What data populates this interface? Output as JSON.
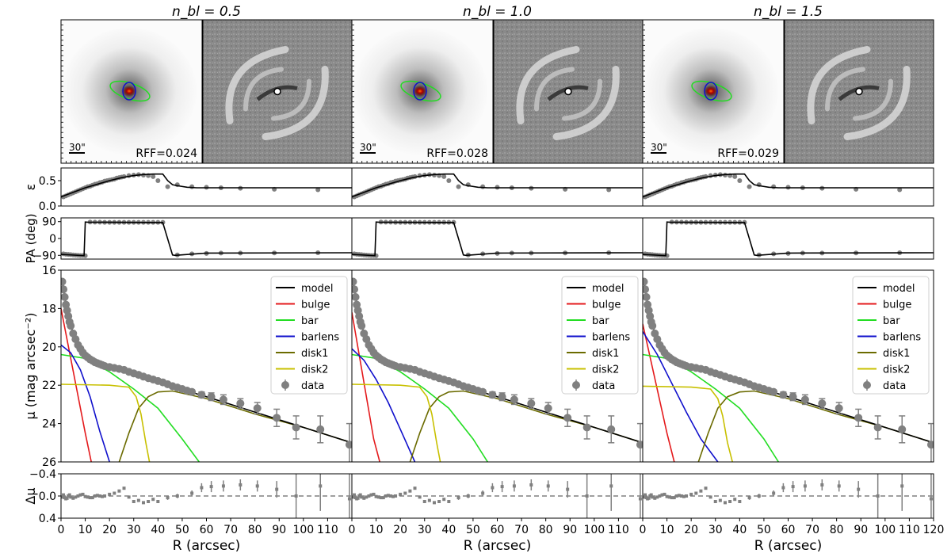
{
  "figure": {
    "column_titles": [
      "n_bl = 0.5",
      "n_bl = 1.0",
      "n_bl = 1.5"
    ],
    "scale_bar_label": "30\"",
    "rff_labels": [
      "RFF=0.024",
      "RFF=0.028",
      "RFF=0.029"
    ],
    "colors": {
      "model": "#000000",
      "bulge": "#e41a1c",
      "bar": "#22dd22",
      "barlens": "#1010cc",
      "disk1": "#6b6b00",
      "disk2": "#c8c000",
      "data": "#808080"
    }
  },
  "chart_data": [
    {
      "type": "scatter",
      "panel": "ellipticity",
      "ylabel": "ε",
      "ylim": [
        0,
        0.75
      ],
      "yticks": [
        "0.0",
        "0.5"
      ],
      "xlim": [
        0,
        120
      ],
      "data_x": [
        1,
        2,
        3,
        4,
        5,
        6,
        7,
        8,
        9,
        10,
        11,
        12,
        13,
        14,
        15,
        16,
        17,
        18,
        19,
        20,
        21,
        22,
        23,
        24,
        25,
        26,
        28,
        30,
        32,
        34,
        36,
        38,
        40,
        44,
        48,
        54,
        60,
        66,
        74,
        88,
        106
      ],
      "data_y": [
        0.18,
        0.2,
        0.22,
        0.24,
        0.26,
        0.28,
        0.3,
        0.32,
        0.34,
        0.36,
        0.38,
        0.39,
        0.41,
        0.43,
        0.44,
        0.46,
        0.47,
        0.49,
        0.5,
        0.51,
        0.52,
        0.53,
        0.55,
        0.56,
        0.57,
        0.58,
        0.6,
        0.61,
        0.62,
        0.61,
        0.6,
        0.58,
        0.5,
        0.38,
        0.42,
        0.38,
        0.37,
        0.36,
        0.35,
        0.33,
        0.32
      ],
      "model_x": [
        0,
        10,
        20,
        25,
        30,
        34,
        38,
        42,
        44,
        46,
        48,
        52,
        56,
        60,
        70,
        90,
        120
      ],
      "model_y": [
        0.18,
        0.36,
        0.5,
        0.56,
        0.6,
        0.62,
        0.63,
        0.63,
        0.5,
        0.42,
        0.4,
        0.37,
        0.36,
        0.36,
        0.36,
        0.36,
        0.36
      ]
    },
    {
      "type": "scatter",
      "panel": "position-angle",
      "ylabel": "PA (deg)",
      "ylim": [
        -110,
        110
      ],
      "yticks": [
        "90",
        "0",
        "−90"
      ],
      "xlim": [
        0,
        120
      ],
      "data_x": [
        1,
        2,
        3,
        4,
        5,
        6,
        7,
        8,
        9,
        10,
        12,
        14,
        16,
        18,
        20,
        22,
        24,
        26,
        28,
        30,
        32,
        34,
        36,
        38,
        40,
        42,
        48,
        54,
        60,
        66,
        74,
        88,
        106
      ],
      "data_y": [
        -82,
        -84,
        -85,
        -86,
        -88,
        -89,
        -90,
        -91,
        -91,
        -92,
        88,
        87,
        87,
        86,
        86,
        86,
        86,
        86,
        86,
        86,
        86,
        86,
        86,
        86,
        86,
        86,
        -88,
        -82,
        -80,
        -78,
        -78,
        -77,
        -76
      ],
      "model_x": [
        0,
        9.5,
        10,
        11,
        42,
        46,
        47,
        60,
        120
      ],
      "model_y": [
        -85,
        -92,
        88,
        87,
        85,
        -88,
        -90,
        -78,
        -76
      ]
    },
    {
      "type": "line",
      "panel": "surface-brightness",
      "ylabel": "μ (mag arcsec⁻²)",
      "ylim": [
        26,
        16
      ],
      "yticks": [
        "16",
        "18",
        "20",
        "22",
        "24",
        "26"
      ],
      "xlim": [
        0,
        120
      ],
      "legend": [
        "model",
        "bulge",
        "bar",
        "barlens",
        "disk1",
        "disk2",
        "data"
      ],
      "data_x": [
        0.5,
        1,
        1.5,
        2,
        2.5,
        3,
        3.5,
        4,
        5,
        6,
        7,
        8,
        9,
        10,
        11,
        12,
        13,
        14,
        15,
        16,
        17,
        18,
        20,
        22,
        24,
        26,
        28,
        30,
        32,
        34,
        36,
        38,
        40,
        42,
        44,
        46,
        48,
        50,
        52,
        54,
        58,
        62,
        67,
        74,
        81,
        89,
        97,
        107,
        119
      ],
      "data_y": [
        16.6,
        17.0,
        17.4,
        17.8,
        18.1,
        18.4,
        18.7,
        18.9,
        19.3,
        19.6,
        19.9,
        20.1,
        20.3,
        20.45,
        20.55,
        20.65,
        20.72,
        20.8,
        20.85,
        20.9,
        20.95,
        21.0,
        21.05,
        21.1,
        21.15,
        21.2,
        21.3,
        21.38,
        21.46,
        21.55,
        21.63,
        21.7,
        21.78,
        21.85,
        21.95,
        22.05,
        22.12,
        22.2,
        22.28,
        22.35,
        22.5,
        22.6,
        22.75,
        22.95,
        23.2,
        23.7,
        24.2,
        24.3,
        25.1
      ],
      "err": [
        0,
        0,
        0,
        0,
        0,
        0,
        0,
        0,
        0,
        0,
        0,
        0,
        0,
        0,
        0,
        0,
        0,
        0,
        0,
        0,
        0,
        0,
        0,
        0,
        0,
        0,
        0,
        0,
        0,
        0,
        0,
        0,
        0,
        0.05,
        0.05,
        0.05,
        0.08,
        0.08,
        0.1,
        0.1,
        0.15,
        0.2,
        0.25,
        0.25,
        0.3,
        0.45,
        0.6,
        0.7,
        1.1
      ],
      "model_x": [
        0.5,
        2,
        4,
        6,
        8,
        10,
        14,
        18,
        22,
        26,
        30,
        34,
        40,
        46,
        52,
        60,
        70,
        80,
        90,
        100,
        110,
        120
      ],
      "model_y": [
        16.5,
        17.7,
        18.9,
        19.6,
        20.1,
        20.45,
        20.85,
        21.0,
        21.1,
        21.2,
        21.38,
        21.55,
        21.78,
        22.05,
        22.3,
        22.6,
        23.0,
        23.4,
        23.8,
        24.2,
        24.6,
        25.0
      ],
      "components": [
        {
          "name": "bulge",
          "x": [
            [
              0,
              10,
              12.5
            ],
            [
              0,
              9,
              11.5
            ],
            [
              0,
              10,
              13
            ]
          ],
          "y": [
            [
              18.0,
              24.5,
              26
            ],
            [
              18.2,
              24.8,
              26
            ],
            [
              18.8,
              24.5,
              26
            ]
          ]
        },
        {
          "name": "bar",
          "x": [
            [
              0,
              10,
              20,
              30,
              40,
              50,
              57
            ],
            [
              0,
              10,
              20,
              30,
              40,
              50,
              56
            ],
            [
              0,
              10,
              20,
              30,
              40,
              50,
              56
            ]
          ],
          "y": [
            [
              20.4,
              20.6,
              21.3,
              22.2,
              23.2,
              24.8,
              26
            ],
            [
              20.4,
              20.6,
              21.3,
              22.2,
              23.2,
              24.8,
              26
            ],
            [
              20.4,
              20.6,
              21.3,
              22.2,
              23.2,
              24.8,
              26
            ]
          ]
        },
        {
          "name": "barlens",
          "x": [
            [
              0,
              4,
              8,
              12,
              16,
              20
            ],
            [
              0,
              5,
              10,
              15,
              20,
              26
            ],
            [
              0,
              6,
              12,
              18,
              24,
              31
            ]
          ],
          "y": [
            [
              19.9,
              20.3,
              21.2,
              22.6,
              24.4,
              26
            ],
            [
              20.1,
              20.7,
              21.7,
              22.9,
              24.3,
              26
            ],
            [
              19.2,
              20.4,
              21.9,
              23.4,
              24.8,
              26
            ]
          ]
        },
        {
          "name": "disk1",
          "x": [
            [
              24,
              28,
              32,
              36,
              40,
              46,
              60,
              80,
              100,
              120
            ],
            [
              24,
              28,
              32,
              36,
              40,
              46,
              60,
              80,
              100,
              120
            ],
            [
              23,
              27,
              31,
              35,
              40,
              46,
              60,
              80,
              100,
              120
            ]
          ],
          "y": [
            [
              26,
              24.5,
              23.2,
              22.6,
              22.35,
              22.3,
              22.7,
              23.5,
              24.2,
              25.0
            ],
            [
              26,
              24.5,
              23.2,
              22.6,
              22.35,
              22.3,
              22.7,
              23.5,
              24.2,
              25.0
            ],
            [
              26,
              24.5,
              23.2,
              22.6,
              22.35,
              22.3,
              22.7,
              23.5,
              24.2,
              25.0
            ]
          ]
        },
        {
          "name": "disk2",
          "x": [
            [
              0,
              20,
              28,
              31,
              33,
              35,
              36.5
            ],
            [
              0,
              20,
              28,
              31,
              33,
              35,
              36.5
            ],
            [
              0,
              20,
              28,
              31,
              33,
              35,
              37
            ]
          ],
          "y": [
            [
              21.95,
              22.0,
              22.1,
              22.6,
              23.5,
              25.0,
              26
            ],
            [
              21.95,
              22.0,
              22.1,
              22.6,
              23.5,
              25.0,
              26
            ],
            [
              22.05,
              22.1,
              22.2,
              22.7,
              23.6,
              25.0,
              26
            ]
          ]
        }
      ]
    },
    {
      "type": "scatter",
      "panel": "residual",
      "ylabel": "Δμ",
      "ylim": [
        0.4,
        -0.4
      ],
      "yticks": [
        "−0.4",
        "0.0",
        "0.4"
      ],
      "xlim": [
        0,
        120
      ],
      "xlabel": "R (arcsec)",
      "xticks": [
        0,
        10,
        20,
        30,
        40,
        50,
        60,
        70,
        80,
        90,
        100,
        110,
        120
      ],
      "data_x": [
        0.5,
        1,
        1.5,
        2,
        2.5,
        3,
        3.5,
        4,
        5,
        6,
        7,
        8,
        9,
        10,
        11,
        12,
        13,
        14,
        15,
        16,
        17,
        18,
        20,
        22,
        24,
        26,
        28,
        30,
        32,
        34,
        36,
        38,
        40,
        44,
        48,
        54,
        58,
        62,
        67,
        74,
        81,
        89,
        97,
        107,
        119
      ],
      "data_y": [
        0.02,
        -0.02,
        0.03,
        0.05,
        0.04,
        0.0,
        -0.02,
        0.02,
        0.04,
        0.02,
        0.0,
        -0.02,
        -0.03,
        0.01,
        0.02,
        0.03,
        0.03,
        0.0,
        -0.01,
        0.0,
        0.01,
        0.0,
        -0.03,
        -0.05,
        -0.09,
        -0.14,
        0.02,
        0.1,
        0.08,
        0.12,
        0.1,
        0.06,
        0.1,
        0.03,
        0.0,
        -0.05,
        -0.15,
        -0.17,
        -0.18,
        -0.2,
        -0.18,
        -0.12,
        0.0,
        -0.18,
        0.05
      ],
      "err": [
        0,
        0,
        0,
        0,
        0,
        0,
        0,
        0,
        0,
        0,
        0,
        0,
        0,
        0,
        0,
        0,
        0,
        0,
        0,
        0,
        0,
        0,
        0,
        0,
        0,
        0,
        0,
        0,
        0,
        0,
        0,
        0,
        0,
        0.04,
        0.04,
        0.05,
        0.08,
        0.1,
        0.1,
        0.1,
        0.1,
        0.15,
        0.4,
        0.45,
        0.6
      ]
    }
  ]
}
